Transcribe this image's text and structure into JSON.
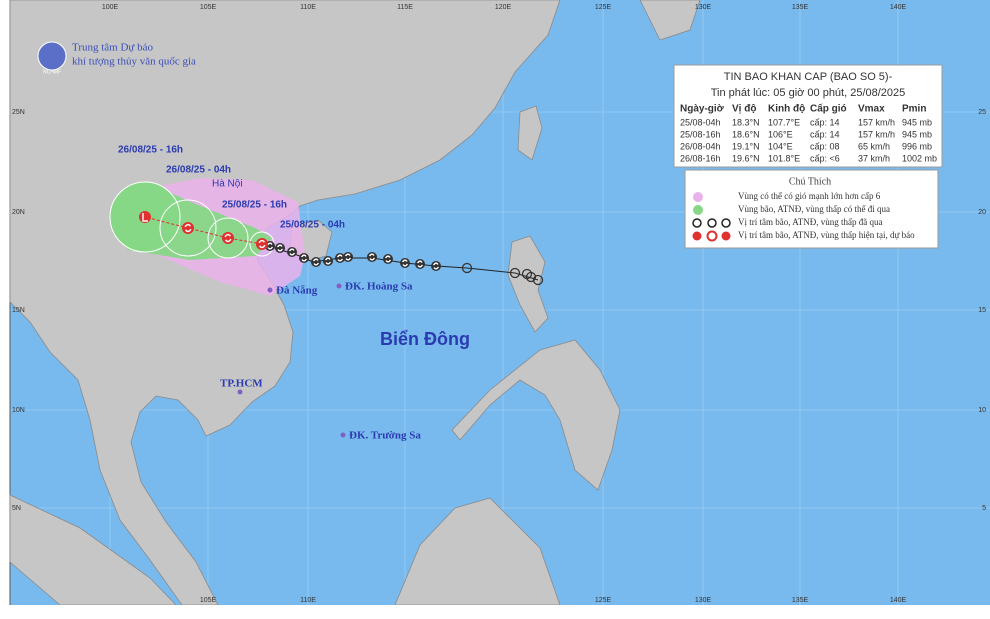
{
  "header": {
    "org_line1": "Trung tâm Dự báo",
    "org_line2": "khí tượng thủy văn quốc gia"
  },
  "grid": {
    "top_labels": [
      "100E",
      "105E",
      "110E",
      "115E",
      "120E",
      "125E",
      "130E",
      "135E",
      "140E"
    ],
    "bottom_labels": [
      "105E",
      "110E",
      "125E",
      "130E",
      "135E",
      "140E"
    ],
    "left_labels": [
      "25N",
      "20N",
      "15N",
      "10N",
      "5N"
    ],
    "right_labels": [
      "25",
      "20",
      "15",
      "10",
      "5"
    ]
  },
  "bulletin": {
    "title": "TIN BAO KHAN CAP (BAO SO 5)-",
    "issued": "Tin phát lúc: 05 giờ 00 phút, 25/08/2025",
    "columns": [
      "Ngày-giờ",
      "Vị độ",
      "Kinh độ",
      "Cấp gió",
      "Vmax",
      "Pmin"
    ],
    "rows": [
      [
        "25/08-04h",
        "18.3°N",
        "107.7°E",
        "cấp: 14",
        "157 km/h",
        "945 mb"
      ],
      [
        "25/08-16h",
        "18.6°N",
        "106°E",
        "cấp: 14",
        "157 km/h",
        "945 mb"
      ],
      [
        "26/08-04h",
        "19.1°N",
        "104°E",
        "cấp: 08",
        "65 km/h",
        "996 mb"
      ],
      [
        "26/08-16h",
        "19.6°N",
        "101.8°E",
        "cấp: <6",
        "37 km/h",
        "1002 mb"
      ]
    ]
  },
  "legend": {
    "title": "Chú Thích",
    "items": [
      "Vùng có thể có gió mạnh lớn hơn cấp 6",
      "Vùng bão, ATNĐ, vùng thấp có thể đi qua",
      "Vị trí tâm bão, ATNĐ, vùng thấp đã qua",
      "Vị trí tâm bão, ATNĐ, vùng thấp hiện tại, dự báo"
    ]
  },
  "map_labels": {
    "track": [
      "26/08/25 - 16h",
      "26/08/25 - 04h",
      "25/08/25 - 16h",
      "25/08/25 - 04h"
    ],
    "places": [
      "Hà Nội",
      "Đà Nẵng",
      "ĐK. Hoàng Sa",
      "TP.HCM",
      "ĐK. Trường Sa"
    ],
    "sea": "Biển Đông"
  }
}
